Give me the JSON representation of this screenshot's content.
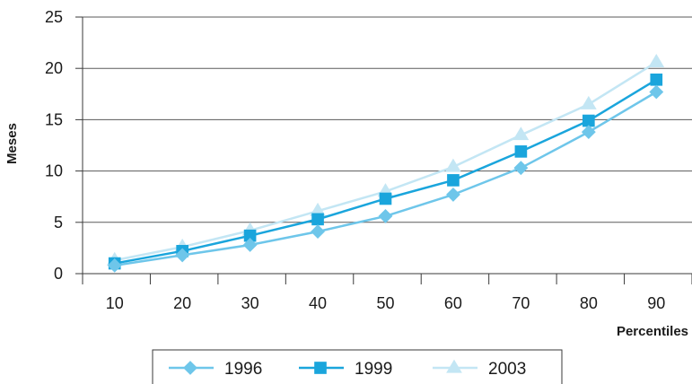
{
  "chart_data": {
    "type": "line",
    "xlabel": "Percentiles",
    "ylabel": "Meses",
    "categories": [
      10,
      20,
      30,
      40,
      50,
      60,
      70,
      80,
      90
    ],
    "ylim": [
      0,
      25
    ],
    "yticks": [
      0,
      5,
      10,
      15,
      20,
      25
    ],
    "grid": "horizontal",
    "legend": "bottom",
    "series": [
      {
        "name": "1996",
        "color": "#6ec6ea",
        "marker": "diamond",
        "values": [
          0.8,
          1.8,
          2.8,
          4.1,
          5.6,
          7.7,
          10.3,
          13.8,
          17.7
        ]
      },
      {
        "name": "1999",
        "color": "#1aa5dc",
        "marker": "square",
        "values": [
          1.0,
          2.2,
          3.7,
          5.3,
          7.3,
          9.1,
          11.9,
          14.9,
          18.9
        ]
      },
      {
        "name": "2003",
        "color": "#c3e6f4",
        "marker": "triangle",
        "values": [
          1.3,
          2.6,
          4.2,
          6.1,
          8.0,
          10.4,
          13.5,
          16.5,
          20.6
        ]
      }
    ]
  }
}
